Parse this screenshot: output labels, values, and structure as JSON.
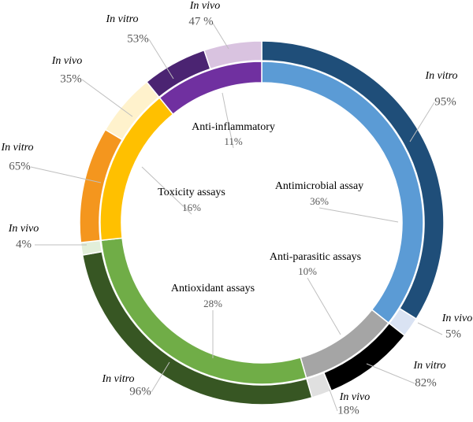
{
  "chart_data": {
    "type": "nested_donut",
    "categories": [
      "Antimicrobial assay",
      "Anti-parasitic assays",
      "Antioxidant assays",
      "Toxicity assays",
      "Anti-inflammatory"
    ],
    "values": [
      36,
      10,
      28,
      16,
      11
    ],
    "value_labels": [
      "36%",
      "10%",
      "28%",
      "16%",
      "11%"
    ],
    "colors": [
      "#5b9bd5",
      "#a5a5a5",
      "#70ad47",
      "#ffc000",
      "#7030a0"
    ],
    "children": [
      {
        "labels": [
          "In vitro",
          "In vivo"
        ],
        "values": [
          95,
          5
        ],
        "value_labels": [
          "95%",
          "5%"
        ],
        "colors": [
          "#1f4e79",
          "#dae3f3"
        ]
      },
      {
        "labels": [
          "In vitro",
          "In vivo"
        ],
        "values": [
          82,
          18
        ],
        "value_labels": [
          "82%",
          "18%"
        ],
        "colors": [
          "#000000",
          "#e0e0e0"
        ]
      },
      {
        "labels": [
          "In vitro",
          "In vivo"
        ],
        "values": [
          96,
          4
        ],
        "value_labels": [
          "96%",
          "4%"
        ],
        "colors": [
          "#375623",
          "#e2efda"
        ]
      },
      {
        "labels": [
          "In vitro",
          "In vivo"
        ],
        "values": [
          65,
          35
        ],
        "value_labels": [
          "65%",
          "35%"
        ],
        "colors": [
          "#f4961e",
          "#fff2cc"
        ]
      },
      {
        "labels": [
          "In vitro",
          "In vivo"
        ],
        "values": [
          53,
          47
        ],
        "value_labels": [
          "53%",
          "47 %"
        ],
        "colors": [
          "#4b2472",
          "#d9c3e0"
        ]
      }
    ]
  }
}
